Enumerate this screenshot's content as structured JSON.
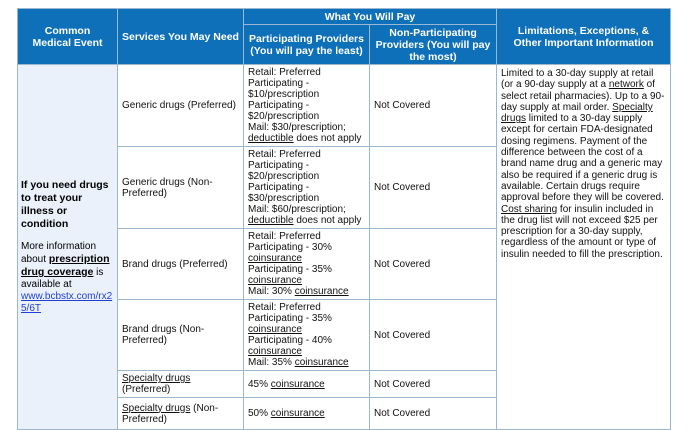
{
  "headers": {
    "common_event": "Common Medical Event",
    "services": "Services You May Need",
    "what_you_pay": "What You Will Pay",
    "participating": "Participating Providers (You will pay the least)",
    "non_participating": "Non-Participating Providers (You will pay the most)",
    "limitations": "Limitations, Exceptions, & Other Important Information"
  },
  "event": {
    "bold": "If you need drugs to treat your illness or condition",
    "more_pre": "More information about ",
    "more_link": "prescription drug coverage",
    "more_post": " is available at",
    "url": "www.bcbstx.com/rx25/6T"
  },
  "rows": [
    {
      "service": "Generic drugs (Preferred)",
      "participating": [
        {
          "t": "Retail: Preferred Participating - $10/prescription"
        },
        {
          "t": "Participating - $20/prescription"
        },
        {
          "t": "Mail: $30/prescription; "
        },
        {
          "t": "deductible",
          "u": true
        },
        {
          "t": " does not apply"
        }
      ],
      "non_participating": "Not Covered"
    },
    {
      "service": "Generic drugs (Non-Preferred)",
      "participating": [
        {
          "t": "Retail: Preferred Participating - $20/prescription"
        },
        {
          "t": "Participating - $30/prescription"
        },
        {
          "t": "Mail: $60/prescription; "
        },
        {
          "t": "deductible",
          "u": true
        },
        {
          "t": " does not apply"
        }
      ],
      "non_participating": "Not Covered"
    },
    {
      "service": "Brand drugs (Preferred)",
      "participating": [
        {
          "t": "Retail: Preferred Participating - 30% "
        },
        {
          "t": "coinsurance",
          "u": true
        },
        {
          "t": "Participating - 35% "
        },
        {
          "t": "coinsurance",
          "u": true
        },
        {
          "t": "Mail: 30% "
        },
        {
          "t": "coinsurance",
          "u": true
        }
      ],
      "non_participating": "Not Covered"
    },
    {
      "service": "Brand drugs (Non-Preferred)",
      "participating": [
        {
          "t": "Retail: Preferred Participating - 35% "
        },
        {
          "t": "coinsurance",
          "u": true
        },
        {
          "t": "Participating - 40% "
        },
        {
          "t": "coinsurance",
          "u": true
        },
        {
          "t": "Mail: 35% "
        },
        {
          "t": "coinsurance",
          "u": true
        }
      ],
      "non_participating": "Not Covered"
    },
    {
      "service_u": "Specialty drugs",
      "service_rest": " (Preferred)",
      "participating": [
        {
          "t": "45% "
        },
        {
          "t": "coinsurance",
          "u": true
        }
      ],
      "non_participating": "Not Covered"
    },
    {
      "service_u": "Specialty drugs",
      "service_rest": " (Non-Preferred)",
      "participating": [
        {
          "t": "50% "
        },
        {
          "t": "coinsurance",
          "u": true
        }
      ],
      "non_participating": "Not Covered"
    }
  ],
  "limitations": [
    {
      "t": "Limited to a 30-day supply at retail (or a 90-day supply at a "
    },
    {
      "t": "network",
      "u": true
    },
    {
      "t": " of select retail pharmacies). Up to a 90-day supply at mail order. "
    },
    {
      "t": "Specialty drugs",
      "u": true
    },
    {
      "t": " limited to a 30-day supply except for certain FDA-designated dosing regimens. Payment of the difference between the cost of a brand name drug and a generic may also be required if a generic drug is available. Certain drugs require approval before they will be covered. "
    },
    {
      "t": "Cost sharing",
      "u": true
    },
    {
      "t": " for insulin included in the drug list will not exceed $25 per prescription for a 30-day supply, regardless of the amount or type of insulin needed to fill the prescription."
    }
  ]
}
